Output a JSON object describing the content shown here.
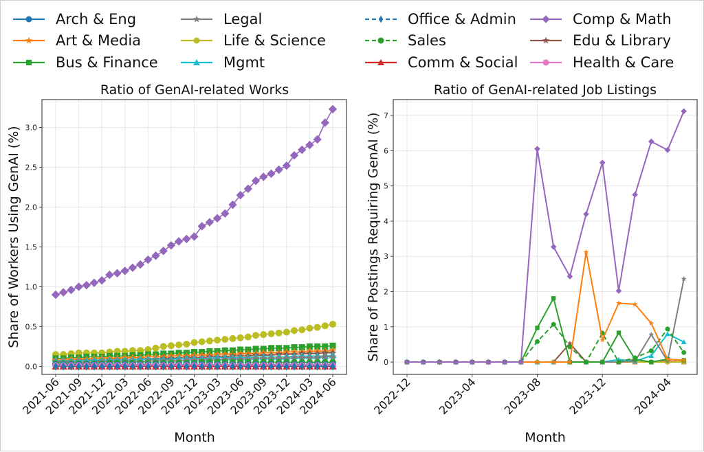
{
  "legend": {
    "entries": [
      {
        "name": "Arch & Eng",
        "color": "#1f77b4",
        "marker": "circle",
        "dash": false
      },
      {
        "name": "Art & Media",
        "color": "#ff7f0e",
        "marker": "star",
        "dash": false
      },
      {
        "name": "Bus & Finance",
        "color": "#2ca02c",
        "marker": "square",
        "dash": false
      },
      {
        "name": "Legal",
        "color": "#7f7f7f",
        "marker": "star",
        "dash": false
      },
      {
        "name": "Life & Science",
        "color": "#bcbd22",
        "marker": "circle",
        "dash": false
      },
      {
        "name": "Mgmt",
        "color": "#17becf",
        "marker": "triangle",
        "dash": false
      },
      {
        "name": "Office & Admin",
        "color": "#1f77b4",
        "marker": "thin-diamond",
        "dash": true
      },
      {
        "name": "Sales",
        "color": "#2ca02c",
        "marker": "circle",
        "dash": true
      },
      {
        "name": "Comm & Social",
        "color": "#d62728",
        "marker": "triangle",
        "dash": false
      },
      {
        "name": "Comp & Math",
        "color": "#9467bd",
        "marker": "diamond",
        "dash": false
      },
      {
        "name": "Edu & Library",
        "color": "#8c564b",
        "marker": "star",
        "dash": false
      },
      {
        "name": "Health & Care",
        "color": "#e377c2",
        "marker": "circle",
        "dash": false
      }
    ]
  },
  "chart_data": [
    {
      "type": "line",
      "title": "Ratio of GenAI-related Works",
      "xlabel": "Month",
      "ylabel": "Share of Workers Using GenAI (%)",
      "ylim": [
        -0.1,
        3.35
      ],
      "yticks": [
        "0.0",
        "0.5",
        "1.0",
        "1.5",
        "2.0",
        "2.5",
        "3.0"
      ],
      "ytick_values": [
        0,
        0.5,
        1.0,
        1.5,
        2.0,
        2.5,
        3.0
      ],
      "xticks": [
        "2021-06",
        "2021-09",
        "2021-12",
        "2022-03",
        "2022-06",
        "2022-09",
        "2022-12",
        "2023-03",
        "2023-06",
        "2023-09",
        "2023-12",
        "2024-03",
        "2024-06"
      ],
      "x_start": "2021-06",
      "n_points": 37,
      "grid": true,
      "series": [
        {
          "name": "Comp & Math",
          "values": [
            0.9,
            0.93,
            0.96,
            1.0,
            1.02,
            1.05,
            1.08,
            1.15,
            1.17,
            1.2,
            1.24,
            1.28,
            1.34,
            1.39,
            1.45,
            1.52,
            1.57,
            1.6,
            1.63,
            1.76,
            1.81,
            1.86,
            1.92,
            2.03,
            2.15,
            2.23,
            2.33,
            2.38,
            2.42,
            2.47,
            2.52,
            2.65,
            2.72,
            2.78,
            2.85,
            3.06,
            3.23
          ]
        },
        {
          "name": "Life & Science",
          "values": [
            0.15,
            0.15,
            0.16,
            0.17,
            0.17,
            0.17,
            0.17,
            0.18,
            0.19,
            0.19,
            0.2,
            0.2,
            0.21,
            0.23,
            0.25,
            0.26,
            0.27,
            0.28,
            0.3,
            0.31,
            0.32,
            0.33,
            0.34,
            0.35,
            0.36,
            0.37,
            0.39,
            0.4,
            0.41,
            0.42,
            0.43,
            0.45,
            0.46,
            0.48,
            0.49,
            0.51,
            0.53
          ]
        },
        {
          "name": "Bus & Finance",
          "values": [
            0.1,
            0.1,
            0.11,
            0.11,
            0.12,
            0.12,
            0.12,
            0.13,
            0.13,
            0.13,
            0.14,
            0.14,
            0.15,
            0.15,
            0.16,
            0.16,
            0.17,
            0.17,
            0.18,
            0.18,
            0.19,
            0.19,
            0.2,
            0.2,
            0.21,
            0.21,
            0.22,
            0.22,
            0.23,
            0.23,
            0.23,
            0.24,
            0.24,
            0.25,
            0.25,
            0.25,
            0.26
          ]
        },
        {
          "name": "Art & Media",
          "values": [
            0.08,
            0.08,
            0.09,
            0.09,
            0.09,
            0.1,
            0.1,
            0.1,
            0.1,
            0.11,
            0.11,
            0.11,
            0.12,
            0.12,
            0.12,
            0.13,
            0.13,
            0.13,
            0.14,
            0.14,
            0.14,
            0.15,
            0.15,
            0.15,
            0.16,
            0.16,
            0.16,
            0.17,
            0.17,
            0.17,
            0.18,
            0.18,
            0.18,
            0.19,
            0.19,
            0.19,
            0.2
          ]
        },
        {
          "name": "Edu & Library",
          "values": [
            0.06,
            0.06,
            0.06,
            0.07,
            0.07,
            0.07,
            0.07,
            0.08,
            0.08,
            0.08,
            0.08,
            0.09,
            0.09,
            0.09,
            0.1,
            0.1,
            0.1,
            0.11,
            0.11,
            0.11,
            0.12,
            0.12,
            0.12,
            0.13,
            0.13,
            0.13,
            0.14,
            0.14,
            0.14,
            0.15,
            0.15,
            0.15,
            0.16,
            0.16,
            0.16,
            0.17,
            0.17
          ]
        },
        {
          "name": "Mgmt",
          "values": [
            0.07,
            0.07,
            0.07,
            0.07,
            0.07,
            0.08,
            0.08,
            0.08,
            0.08,
            0.08,
            0.08,
            0.09,
            0.09,
            0.09,
            0.09,
            0.09,
            0.1,
            0.1,
            0.1,
            0.1,
            0.1,
            0.11,
            0.11,
            0.11,
            0.11,
            0.11,
            0.12,
            0.12,
            0.12,
            0.12,
            0.12,
            0.13,
            0.13,
            0.13,
            0.13,
            0.13,
            0.14
          ]
        },
        {
          "name": "Legal",
          "values": [
            0.05,
            0.05,
            0.05,
            0.05,
            0.05,
            0.05,
            0.06,
            0.06,
            0.06,
            0.06,
            0.06,
            0.06,
            0.07,
            0.07,
            0.07,
            0.07,
            0.07,
            0.08,
            0.08,
            0.08,
            0.08,
            0.08,
            0.09,
            0.09,
            0.09,
            0.09,
            0.1,
            0.1,
            0.1,
            0.1,
            0.1,
            0.11,
            0.11,
            0.11,
            0.11,
            0.12,
            0.12
          ]
        },
        {
          "name": "Sales",
          "values": [
            0.03,
            0.03,
            0.03,
            0.03,
            0.03,
            0.03,
            0.03,
            0.04,
            0.04,
            0.04,
            0.04,
            0.04,
            0.04,
            0.04,
            0.04,
            0.04,
            0.04,
            0.04,
            0.04,
            0.05,
            0.05,
            0.05,
            0.05,
            0.05,
            0.05,
            0.05,
            0.05,
            0.05,
            0.05,
            0.05,
            0.05,
            0.05,
            0.05,
            0.05,
            0.05,
            0.05,
            0.05
          ]
        },
        {
          "name": "Arch & Eng",
          "values": [
            0.02,
            0.02,
            0.02,
            0.02,
            0.02,
            0.02,
            0.02,
            0.02,
            0.02,
            0.02,
            0.02,
            0.02,
            0.02,
            0.02,
            0.02,
            0.02,
            0.02,
            0.02,
            0.02,
            0.02,
            0.02,
            0.02,
            0.02,
            0.02,
            0.02,
            0.02,
            0.02,
            0.02,
            0.02,
            0.02,
            0.02,
            0.02,
            0.02,
            0.02,
            0.02,
            0.02,
            0.02
          ]
        },
        {
          "name": "Health & Care",
          "values": [
            0.01,
            0.01,
            0.01,
            0.01,
            0.01,
            0.01,
            0.01,
            0.01,
            0.01,
            0.01,
            0.01,
            0.01,
            0.01,
            0.01,
            0.01,
            0.01,
            0.01,
            0.01,
            0.01,
            0.01,
            0.01,
            0.01,
            0.01,
            0.01,
            0.01,
            0.01,
            0.01,
            0.01,
            0.01,
            0.01,
            0.01,
            0.01,
            0.01,
            0.01,
            0.01,
            0.01,
            0.01
          ]
        },
        {
          "name": "Comm & Social",
          "values": [
            0.0,
            0.0,
            0.0,
            0.0,
            0.0,
            0.0,
            0.0,
            0.0,
            0.0,
            0.0,
            0.0,
            0.0,
            0.0,
            0.0,
            0.0,
            0.0,
            0.0,
            0.0,
            0.0,
            0.0,
            0.0,
            0.0,
            0.0,
            0.0,
            0.0,
            0.0,
            0.0,
            0.0,
            0.0,
            0.0,
            0.0,
            0.0,
            0.0,
            0.0,
            0.0,
            0.0,
            0.0
          ]
        },
        {
          "name": "Office & Admin",
          "values": [
            0.0,
            0.0,
            0.0,
            0.0,
            0.0,
            0.0,
            0.0,
            0.0,
            0.0,
            0.0,
            0.0,
            0.0,
            0.0,
            0.0,
            0.0,
            0.0,
            0.0,
            0.0,
            0.0,
            0.0,
            0.0,
            0.0,
            0.0,
            0.0,
            0.0,
            0.0,
            0.0,
            0.0,
            0.0,
            0.0,
            0.0,
            0.0,
            0.0,
            0.0,
            0.0,
            0.0,
            0.0
          ]
        }
      ]
    },
    {
      "type": "line",
      "title": "Ratio of GenAI-related Job Listings",
      "xlabel": "Month",
      "ylabel": "Share of Postings Requiring GenAI (%)",
      "ylim": [
        -0.35,
        7.45
      ],
      "yticks": [
        "0",
        "1",
        "2",
        "3",
        "4",
        "5",
        "6",
        "7"
      ],
      "ytick_values": [
        0,
        1,
        2,
        3,
        4,
        5,
        6,
        7
      ],
      "xticks": [
        "2022-12",
        "2023-04",
        "2023-08",
        "2023-12",
        "2024-04"
      ],
      "x_start": "2022-12",
      "n_points": 18,
      "grid": true,
      "series": [
        {
          "name": "Arch & Eng",
          "values": [
            0,
            0,
            0,
            0,
            0,
            0,
            0,
            0,
            0,
            0,
            0,
            0,
            0,
            0,
            0,
            0,
            0,
            0
          ]
        },
        {
          "name": "Office & Admin",
          "values": [
            0,
            0,
            0,
            0,
            0,
            0,
            0,
            0,
            0,
            0,
            0,
            0,
            0,
            0,
            0,
            0,
            0,
            0
          ]
        },
        {
          "name": "Health & Care",
          "values": [
            0,
            0,
            0,
            0,
            0,
            0,
            0,
            0,
            0,
            0,
            0,
            0,
            0,
            0,
            0,
            0,
            0,
            0
          ]
        },
        {
          "name": "Comm & Social",
          "values": [
            0,
            0,
            0,
            0,
            0,
            0,
            0,
            0,
            0,
            0,
            0,
            0,
            0,
            0,
            0,
            0,
            0.02,
            0
          ]
        },
        {
          "name": "Life & Science",
          "values": [
            0,
            0,
            0,
            0,
            0,
            0,
            0,
            0,
            0,
            0,
            0,
            0,
            0,
            0,
            0,
            0,
            0,
            0
          ]
        },
        {
          "name": "Edu & Library",
          "values": [
            0,
            0,
            0,
            0,
            0,
            0,
            0,
            0,
            0,
            0,
            0.53,
            0,
            0,
            0,
            0.07,
            0,
            0.08,
            0.05
          ]
        },
        {
          "name": "Mgmt",
          "values": [
            0,
            0,
            0,
            0,
            0,
            0,
            0,
            0,
            0,
            0,
            0,
            0,
            0,
            0.07,
            0.02,
            0.18,
            0.8,
            0.57
          ]
        },
        {
          "name": "Legal",
          "values": [
            0,
            0,
            0,
            0,
            0,
            0,
            0,
            0,
            0,
            0,
            0,
            0,
            0,
            0,
            0.02,
            0.78,
            0.03,
            2.36
          ]
        },
        {
          "name": "Sales",
          "values": [
            0,
            0,
            0,
            0,
            0,
            0,
            0,
            0,
            0.58,
            1.07,
            0.43,
            0,
            0.82,
            0,
            0.12,
            0.32,
            0.94,
            0.27
          ]
        },
        {
          "name": "Bus & Finance",
          "values": [
            0,
            0,
            0,
            0,
            0,
            0,
            0,
            0,
            0.97,
            1.81,
            0,
            0,
            0,
            0.83,
            0.08,
            0,
            0.08,
            0.05
          ]
        },
        {
          "name": "Art & Media",
          "values": [
            0,
            0,
            0,
            0,
            0,
            0,
            0,
            0,
            0,
            0,
            0,
            3.12,
            0.63,
            1.67,
            1.64,
            1.1,
            0.08,
            0.05
          ]
        },
        {
          "name": "Comp & Math",
          "values": [
            0,
            0,
            0,
            0,
            0,
            0,
            0,
            0,
            6.05,
            3.27,
            2.43,
            4.2,
            5.66,
            2.02,
            4.75,
            6.26,
            6.02,
            7.12
          ]
        }
      ]
    }
  ]
}
